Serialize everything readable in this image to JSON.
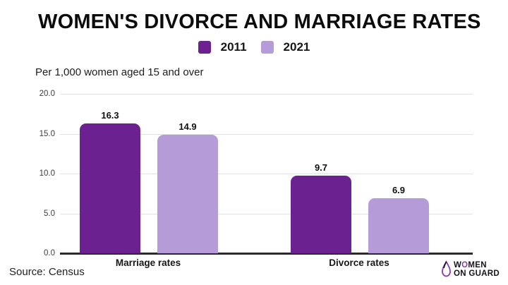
{
  "header": {
    "title": "WOMEN'S DIVORCE AND MARRIAGE RATES"
  },
  "subtitle": "Per 1,000 women aged 15 and over",
  "chart_data": {
    "type": "bar",
    "categories": [
      "Marriage rates",
      "Divorce rates"
    ],
    "series": [
      {
        "name": "2011",
        "color": "#6b2190",
        "values": [
          16.3,
          9.7
        ]
      },
      {
        "name": "2021",
        "color": "#b59bd8",
        "values": [
          14.9,
          6.9
        ]
      }
    ],
    "title": "WOMEN'S DIVORCE AND MARRIAGE RATES",
    "subtitle": "Per 1,000 women aged 15 and over",
    "xlabel": "",
    "ylabel": "",
    "ylim": [
      0,
      20
    ],
    "yticks": [
      {
        "value": 20,
        "label": "20.0"
      },
      {
        "value": 15,
        "label": "15.0"
      },
      {
        "value": 10,
        "label": "10.0"
      },
      {
        "value": 5,
        "label": "5.0"
      },
      {
        "value": 0,
        "label": "0.0"
      }
    ],
    "grid": true,
    "legend_position": "top-center"
  },
  "footer": {
    "source": "Source: Census",
    "logo": {
      "line1_pre": "W",
      "line1_o": "O",
      "line1_post": "MEN",
      "line2": "ON GUARD",
      "icon_color": "#8a3bb0"
    }
  },
  "colors": {
    "background": "#ffffff",
    "bar_2011": "#6b2190",
    "bar_2021": "#b59bd8",
    "axis": "#2a2a2a",
    "gridline": "#e1e1e1",
    "text": "#0c0c0c"
  }
}
